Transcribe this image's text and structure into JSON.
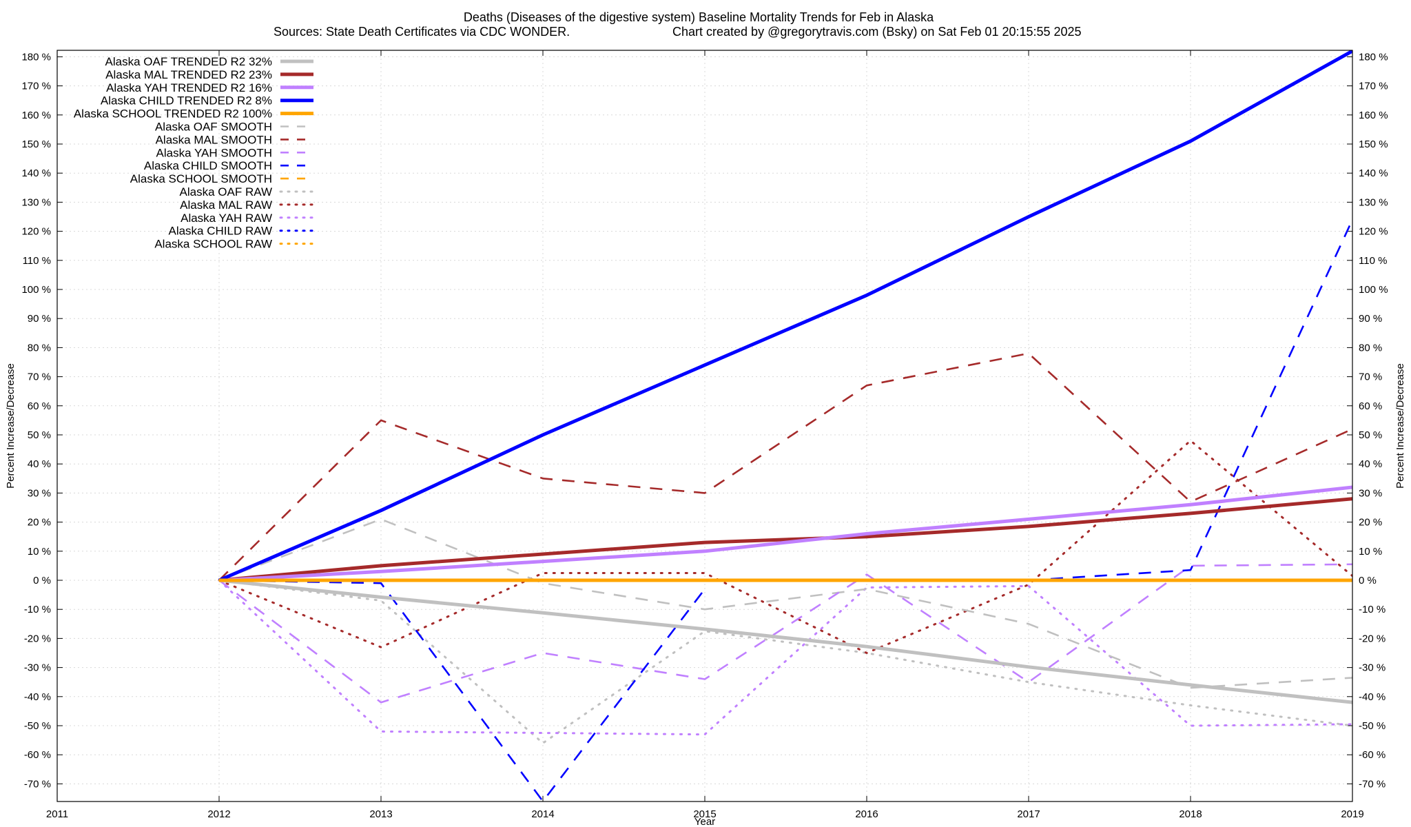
{
  "chart_data": {
    "type": "line",
    "title": "Deaths (Diseases of the digestive system)  Baseline Mortality Trends for Feb in Alaska",
    "subtitle_left": "Sources: State Death Certificates via CDC WONDER.",
    "subtitle_right": "Chart created by @gregorytravis.com (Bsky) on Sat Feb 01 20:15:55 2025",
    "xlabel": "Year",
    "ylabel": "Percent Increase/Decrease",
    "xlim": [
      2011,
      2019
    ],
    "ylim": [
      -76,
      182
    ],
    "x_ticks": [
      "2011",
      "2012",
      "2013",
      "2014",
      "2015",
      "2016",
      "2017",
      "2018",
      "2019"
    ],
    "y_ticks": [
      "180 %",
      "170 %",
      "160 %",
      "150 %",
      "140 %",
      "130 %",
      "120 %",
      "110 %",
      "100 %",
      "90 %",
      "80 %",
      "70 %",
      "60 %",
      "50 %",
      "40 %",
      "30 %",
      "20 %",
      "10 %",
      "0 %",
      "-10 %",
      "-20 %",
      "-30 %",
      "-40 %",
      "-50 %",
      "-60 %",
      "-70 %"
    ],
    "grid": true,
    "legend_position": "top-left",
    "x": [
      2012,
      2013,
      2014,
      2015,
      2016,
      2017,
      2018,
      2019
    ],
    "series": [
      {
        "name": "Alaska OAF TRENDED R2  32%",
        "style": "solid",
        "color": "#c0c0c0",
        "values": [
          0,
          -5.8,
          -11.2,
          -16.8,
          -22.8,
          -29.8,
          -36.0,
          -42.0
        ]
      },
      {
        "name": "Alaska MAL TRENDED R2  23%",
        "style": "solid",
        "color": "#a52a2a",
        "values": [
          0,
          5.0,
          9.0,
          13.0,
          15.0,
          18.5,
          23.0,
          28.0
        ]
      },
      {
        "name": "Alaska YAH TRENDED R2  16%",
        "style": "solid",
        "color": "#c080ff",
        "values": [
          0,
          3.0,
          6.5,
          10.0,
          16.0,
          21.0,
          26.0,
          32.0
        ]
      },
      {
        "name": "Alaska CHILD TRENDED R2   8%",
        "style": "solid",
        "color": "#0000ff",
        "values": [
          0,
          24.0,
          50.0,
          74.0,
          98.0,
          125.0,
          151.0,
          182.0
        ]
      },
      {
        "name": "Alaska SCHOOL TRENDED R2 100%",
        "style": "solid",
        "color": "#ffa500",
        "values": [
          0,
          0,
          0,
          0,
          0,
          0,
          0,
          0
        ]
      },
      {
        "name": "Alaska OAF SMOOTH",
        "style": "dashed",
        "color": "#c0c0c0",
        "values": [
          0,
          21.0,
          -1.0,
          -10.0,
          -3.0,
          -15.0,
          -37.0,
          -33.5
        ]
      },
      {
        "name": "Alaska MAL SMOOTH",
        "style": "dashed",
        "color": "#a52a2a",
        "values": [
          0,
          55.0,
          35.0,
          30.0,
          67.0,
          78.0,
          27.0,
          52.0
        ]
      },
      {
        "name": "Alaska YAH SMOOTH",
        "style": "dashed",
        "color": "#c080ff",
        "values": [
          0,
          -42.0,
          -25.0,
          -34.0,
          2.0,
          -35.0,
          5.0,
          5.5
        ]
      },
      {
        "name": "Alaska CHILD SMOOTH",
        "style": "dashed",
        "color": "#0000ff",
        "values": [
          0,
          -1.0,
          -76.0,
          -3.0,
          null,
          0,
          3.5,
          124.0
        ]
      },
      {
        "name": "Alaska SCHOOL SMOOTH",
        "style": "dashed",
        "color": "#ffa500",
        "values": [
          0,
          0,
          0,
          0,
          0,
          0,
          0,
          0
        ]
      },
      {
        "name": "Alaska OAF RAW",
        "style": "dotted",
        "color": "#c0c0c0",
        "values": [
          0,
          -7.0,
          -56.0,
          -17.5,
          -25.0,
          -35.0,
          -43.0,
          -50.0
        ]
      },
      {
        "name": "Alaska MAL RAW",
        "style": "dotted",
        "color": "#a52a2a",
        "values": [
          0,
          -23.0,
          2.5,
          2.5,
          -25.0,
          -1.5,
          48.0,
          1.5
        ]
      },
      {
        "name": "Alaska YAH RAW",
        "style": "dotted",
        "color": "#c080ff",
        "values": [
          0,
          -52.0,
          -52.5,
          -53.0,
          -2.5,
          -2.0,
          -50.0,
          -49.5
        ]
      },
      {
        "name": "Alaska CHILD RAW",
        "style": "dotted",
        "color": "#0000ff",
        "values": [
          0,
          0,
          0,
          0,
          0,
          0,
          0,
          0
        ]
      },
      {
        "name": "Alaska SCHOOL RAW",
        "style": "dotted",
        "color": "#ffa500",
        "values": [
          0,
          0,
          0,
          0,
          0,
          0,
          0,
          0
        ]
      }
    ]
  }
}
